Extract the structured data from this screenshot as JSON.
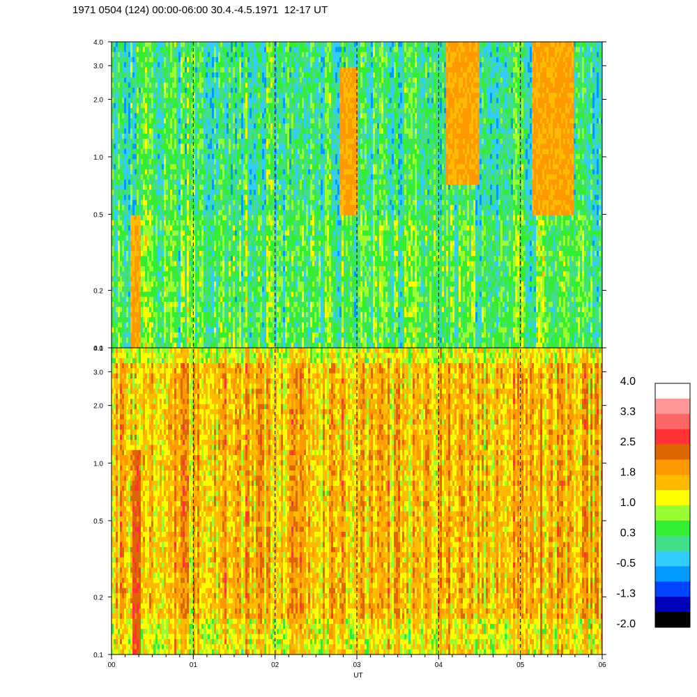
{
  "title": "1971 0504 (124) 00:00-06:00 30.4.-4.5.1971  12-17 UT",
  "chart_data": {
    "type": "heatmap",
    "title": "1971 0504 (124) 00:00-06:00 30.4.-4.5.1971  12-17 UT",
    "xlabel": "UT",
    "x_ticks": [
      "00",
      "01",
      "02",
      "03",
      "04",
      "05",
      "06"
    ],
    "xlim": [
      0,
      6
    ],
    "y_scale": "log",
    "panels": [
      {
        "ylim": [
          0.1,
          4.0
        ],
        "y_ticks": [
          {
            "value": 0.1,
            "label": "0.1"
          },
          {
            "value": 0.2,
            "label": "0.2"
          },
          {
            "value": 0.5,
            "label": "0.5"
          },
          {
            "value": 1.0,
            "label": "1.0"
          },
          {
            "value": 2.0,
            "label": "2.0"
          },
          {
            "value": 3.0,
            "label": "3.0"
          },
          {
            "value": 4.0,
            "label": "4.0"
          }
        ],
        "base_level": 0.0,
        "dominant_colors": [
          "#33ee33",
          "#88ff33",
          "#44dd88",
          "#33ccff"
        ],
        "features": [
          {
            "x": 0.3,
            "width": 0.12,
            "ymin": 0.1,
            "ymax": 0.5,
            "level": 2.0
          },
          {
            "x": 2.9,
            "width": 0.25,
            "ymin": 0.5,
            "ymax": 3.0,
            "level": 2.0
          },
          {
            "x": 4.3,
            "width": 0.4,
            "ymin": 0.7,
            "ymax": 4.0,
            "level": 2.0
          },
          {
            "x": 5.4,
            "width": 0.5,
            "ymin": 0.5,
            "ymax": 4.0,
            "level": 2.0
          }
        ]
      },
      {
        "ylim": [
          0.1,
          4.0
        ],
        "y_ticks": [
          {
            "value": 0.1,
            "label": "0.1"
          },
          {
            "value": 0.2,
            "label": "0.2"
          },
          {
            "value": 0.5,
            "label": "0.5"
          },
          {
            "value": 1.0,
            "label": "1.0"
          },
          {
            "value": 2.0,
            "label": "2.0"
          },
          {
            "value": 3.0,
            "label": "3.0"
          },
          {
            "value": 4.0,
            "label": "4.0"
          }
        ],
        "base_level": 1.5,
        "dominant_colors": [
          "#ffbb00",
          "#ffff00",
          "#ff9900",
          "#88ff33"
        ],
        "features": [
          {
            "x": 0.3,
            "width": 0.1,
            "ymin": 0.1,
            "ymax": 1.2,
            "level": 2.6
          },
          {
            "x": 1.8,
            "width": 0.05,
            "ymin": 0.2,
            "ymax": 1.0,
            "level": 2.2
          },
          {
            "x": 5.25,
            "width": 0.03,
            "ymin": 0.1,
            "ymax": 2.0,
            "level": 2.6
          }
        ]
      }
    ],
    "dashed_verticals": [
      1,
      2,
      3,
      4,
      5
    ],
    "colorbar": {
      "labels": [
        "4.0",
        "3.3",
        "2.5",
        "1.8",
        "1.0",
        "0.3",
        "-0.5",
        "-1.3",
        "-2.0"
      ],
      "colors": [
        "#ffffff",
        "#ff9999",
        "#ff6666",
        "#ff3333",
        "#dd6600",
        "#ff9900",
        "#ffbb00",
        "#ffff00",
        "#99ff33",
        "#33ee33",
        "#44dd88",
        "#33ccff",
        "#0099ff",
        "#0044ff",
        "#0000bb",
        "#000000"
      ]
    }
  }
}
